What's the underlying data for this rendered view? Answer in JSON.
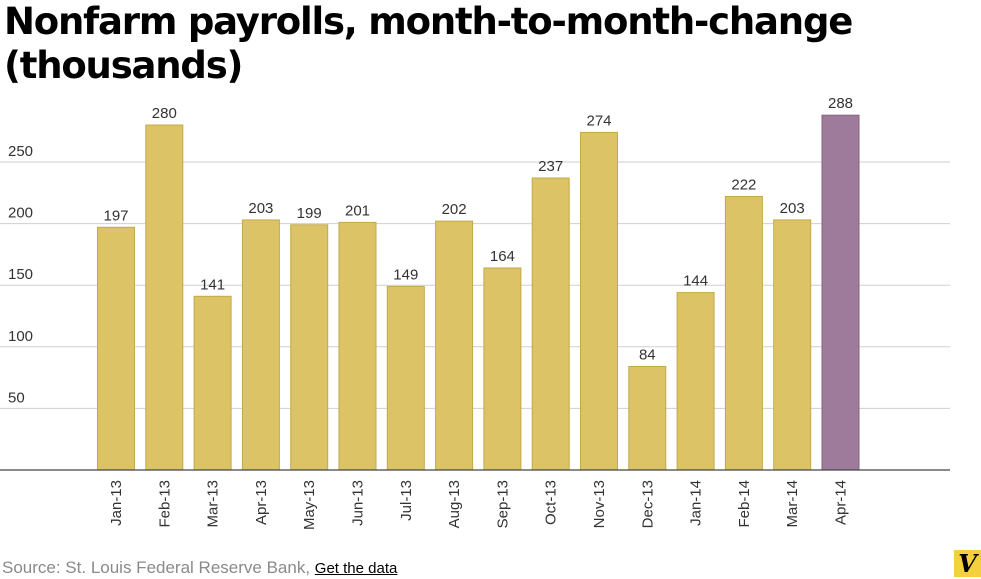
{
  "chart_data": {
    "type": "bar",
    "title": "Nonfarm payrolls, month-to-month-change (thousands)",
    "categories": [
      "Jan-13",
      "Feb-13",
      "Mar-13",
      "Apr-13",
      "May-13",
      "Jun-13",
      "Jul-13",
      "Aug-13",
      "Sep-13",
      "Oct-13",
      "Nov-13",
      "Dec-13",
      "Jan-14",
      "Feb-14",
      "Mar-14",
      "Apr-14"
    ],
    "values": [
      197,
      280,
      141,
      203,
      199,
      201,
      149,
      202,
      164,
      237,
      274,
      84,
      144,
      222,
      203,
      288
    ],
    "data_labels": [
      "197",
      "280",
      "141",
      "203",
      "199",
      "201",
      "149",
      "202",
      "164",
      "237",
      "274",
      "84",
      "144",
      "222",
      "203",
      "288"
    ],
    "ylim": [
      0,
      300
    ],
    "yticks": [
      50,
      100,
      150,
      200,
      250
    ],
    "ytick_labels": [
      "50",
      "100",
      "150",
      "200",
      "250"
    ],
    "grid": true,
    "xlabel": "",
    "ylabel": "",
    "colors": {
      "bar": "#dcc466",
      "bar_border": "#c2a94a",
      "highlight_bar": "#9e7b9b",
      "highlight_border": "#86647f",
      "highlight_category": "Apr-14",
      "grid": "#cfcfcf",
      "axis": "#444444",
      "text": "#333333"
    }
  },
  "footer": {
    "source_text": "Source: St. Louis Federal Reserve Bank,",
    "link_label": "Get the data"
  },
  "logo": {
    "letter": "V"
  }
}
